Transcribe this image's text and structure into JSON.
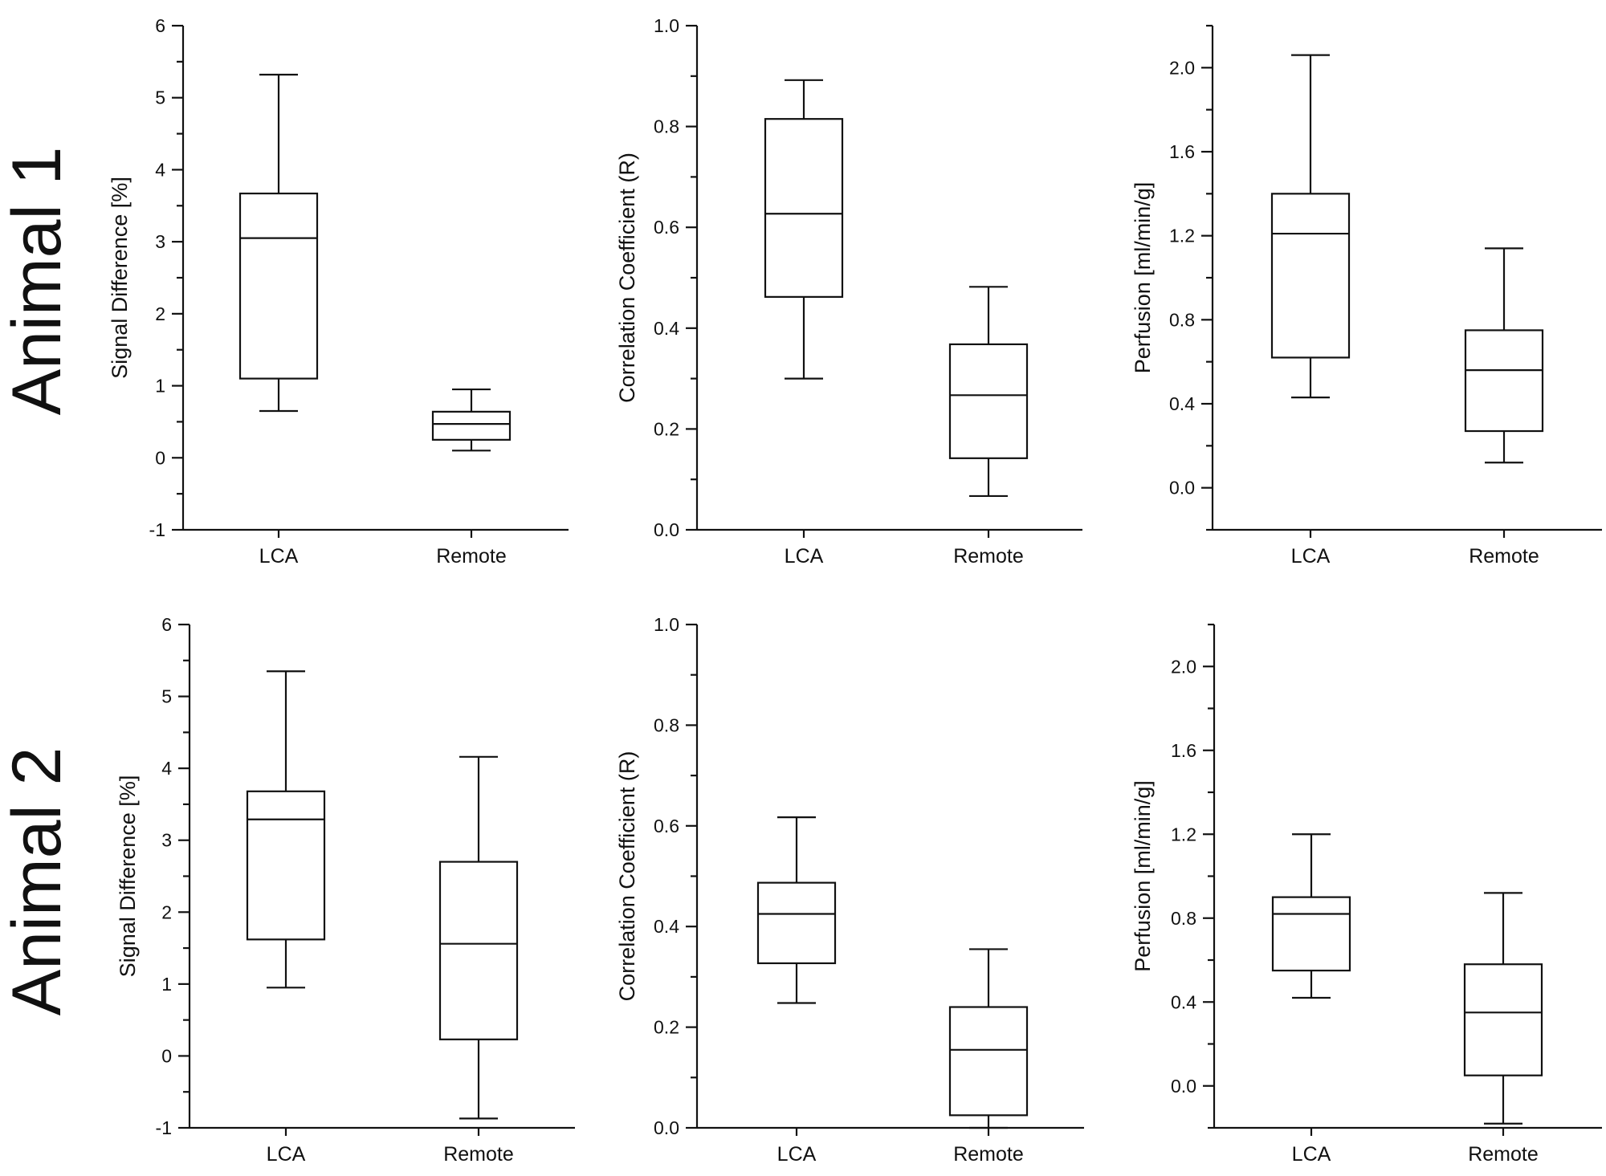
{
  "row_labels": [
    "Animal 1",
    "Animal 2"
  ],
  "chart_data": [
    {
      "type": "box",
      "row": 0,
      "col": 0,
      "ylabel": "Signal Difference [%]",
      "ylim": [
        -1,
        6
      ],
      "yticks": [
        -1,
        0,
        1,
        2,
        3,
        4,
        5,
        6
      ],
      "ytick_labels": [
        "-1",
        "0",
        "1",
        "2",
        "3",
        "4",
        "5",
        "6"
      ],
      "minor_ticks": true,
      "categories": [
        "LCA",
        "Remote"
      ],
      "boxes": [
        {
          "whisker_low": 0.65,
          "q1": 1.1,
          "median": 3.05,
          "q3": 3.67,
          "whisker_high": 5.32
        },
        {
          "whisker_low": 0.1,
          "q1": 0.25,
          "median": 0.47,
          "q3": 0.64,
          "whisker_high": 0.95
        }
      ]
    },
    {
      "type": "box",
      "row": 0,
      "col": 1,
      "ylabel": "Correlation Coefficient (R)",
      "ylim": [
        0,
        1
      ],
      "yticks": [
        0,
        0.2,
        0.4,
        0.6,
        0.8,
        1.0
      ],
      "ytick_labels": [
        "0.0",
        "0.2",
        "0.4",
        "0.6",
        "0.8",
        "1.0"
      ],
      "minor_ticks": true,
      "categories": [
        "LCA",
        "Remote"
      ],
      "boxes": [
        {
          "whisker_low": 0.3,
          "q1": 0.462,
          "median": 0.627,
          "q3": 0.815,
          "whisker_high": 0.892
        },
        {
          "whisker_low": 0.067,
          "q1": 0.142,
          "median": 0.267,
          "q3": 0.368,
          "whisker_high": 0.482
        }
      ]
    },
    {
      "type": "box",
      "row": 0,
      "col": 2,
      "ylabel": "Perfusion [ml/min/g]",
      "ylim": [
        -0.2,
        2.2
      ],
      "yticks": [
        0,
        0.4,
        0.8,
        1.2,
        1.6,
        2.0
      ],
      "ytick_labels": [
        "0.0",
        "0.4",
        "0.8",
        "1.2",
        "1.6",
        "2.0"
      ],
      "minor_ticks": true,
      "categories": [
        "LCA",
        "Remote"
      ],
      "boxes": [
        {
          "whisker_low": 0.43,
          "q1": 0.62,
          "median": 1.21,
          "q3": 1.4,
          "whisker_high": 2.06
        },
        {
          "whisker_low": 0.12,
          "q1": 0.27,
          "median": 0.56,
          "q3": 0.75,
          "whisker_high": 1.14
        }
      ]
    },
    {
      "type": "box",
      "row": 1,
      "col": 0,
      "ylabel": "Signal Difference [%]",
      "ylim": [
        -1,
        6
      ],
      "yticks": [
        -1,
        0,
        1,
        2,
        3,
        4,
        5,
        6
      ],
      "ytick_labels": [
        "-1",
        "0",
        "1",
        "2",
        "3",
        "4",
        "5",
        "6"
      ],
      "minor_ticks": true,
      "categories": [
        "LCA",
        "Remote"
      ],
      "boxes": [
        {
          "whisker_low": 0.95,
          "q1": 1.62,
          "median": 3.29,
          "q3": 3.68,
          "whisker_high": 5.35
        },
        {
          "whisker_low": -0.87,
          "q1": 0.23,
          "median": 1.56,
          "q3": 2.7,
          "whisker_high": 4.16
        }
      ]
    },
    {
      "type": "box",
      "row": 1,
      "col": 1,
      "ylabel": "Correlation Coefficient (R)",
      "ylim": [
        0,
        1
      ],
      "yticks": [
        0,
        0.2,
        0.4,
        0.6,
        0.8,
        1.0
      ],
      "ytick_labels": [
        "0.0",
        "0.2",
        "0.4",
        "0.6",
        "0.8",
        "1.0"
      ],
      "minor_ticks": true,
      "categories": [
        "LCA",
        "Remote"
      ],
      "boxes": [
        {
          "whisker_low": 0.248,
          "q1": 0.327,
          "median": 0.425,
          "q3": 0.487,
          "whisker_high": 0.617
        },
        {
          "whisker_low": 0.0,
          "q1": 0.025,
          "median": 0.155,
          "q3": 0.24,
          "whisker_high": 0.355
        }
      ]
    },
    {
      "type": "box",
      "row": 1,
      "col": 2,
      "ylabel": "Perfusion [ml/min/g]",
      "ylim": [
        -0.2,
        2.2
      ],
      "yticks": [
        0,
        0.4,
        0.8,
        1.2,
        1.6,
        2.0
      ],
      "ytick_labels": [
        "0.0",
        "0.4",
        "0.8",
        "1.2",
        "1.6",
        "2.0"
      ],
      "minor_ticks": true,
      "categories": [
        "LCA",
        "Remote"
      ],
      "boxes": [
        {
          "whisker_low": 0.42,
          "q1": 0.55,
          "median": 0.82,
          "q3": 0.9,
          "whisker_high": 1.2
        },
        {
          "whisker_low": -0.18,
          "q1": 0.05,
          "median": 0.35,
          "q3": 0.58,
          "whisker_high": 0.92
        }
      ]
    }
  ]
}
